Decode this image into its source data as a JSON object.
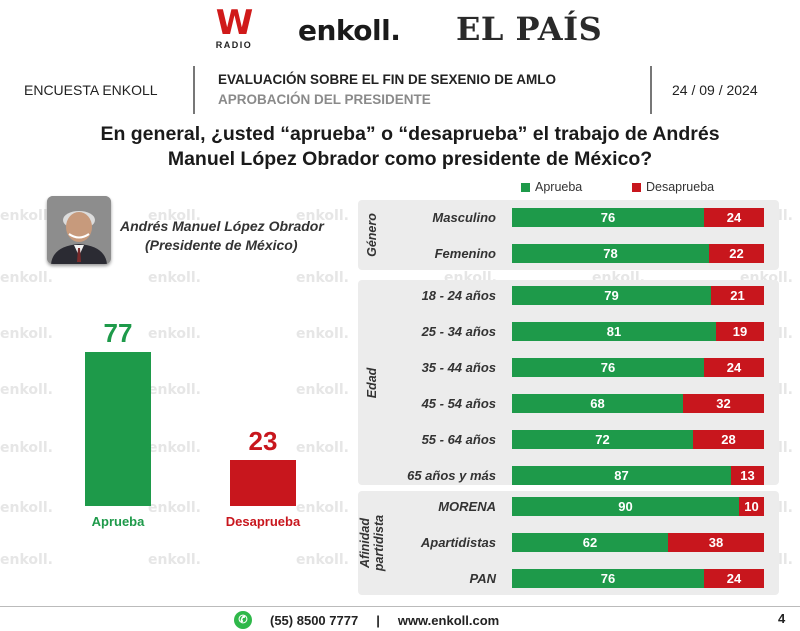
{
  "logos": {
    "w_letter": "W",
    "w_sub": "RADIO",
    "enkoll": "enkoll.",
    "elpais": "EL PAÍS"
  },
  "header": {
    "left": "ENCUESTA ENKOLL",
    "title": "EVALUACIÓN SOBRE EL FIN DE SEXENIO DE AMLO",
    "subtitle": "APROBACIÓN DEL PRESIDENTE",
    "date": "24 / 09 / 2024"
  },
  "question": "En general, ¿usted “aprueba” o “desaprueba” el trabajo de Andrés Manuel López Obrador como presidente de México?",
  "person": {
    "name": "Andrés Manuel López Obrador",
    "role": "(Presidente de México)"
  },
  "watermark": "enkoll.",
  "colors": {
    "aprueba": "#1e9a4a",
    "desaprueba": "#c8161d",
    "group_bg": "#ececec"
  },
  "chart_data": [
    {
      "type": "bar",
      "categories": [
        "Aprueba",
        "Desaprueba"
      ],
      "values": [
        77,
        23
      ],
      "ylim": [
        0,
        100
      ]
    },
    {
      "type": "bar",
      "stacked": true,
      "orientation": "horizontal",
      "legend": {
        "position": "top-right",
        "labels": [
          "Aprueba",
          "Desaprueba"
        ]
      },
      "groups": [
        {
          "label": "Género",
          "rows": [
            {
              "label": "Masculino",
              "aprueba": 76,
              "desaprueba": 24
            },
            {
              "label": "Femenino",
              "aprueba": 78,
              "desaprueba": 22
            }
          ]
        },
        {
          "label": "Edad",
          "rows": [
            {
              "label": "18 - 24 años",
              "aprueba": 79,
              "desaprueba": 21
            },
            {
              "label": "25 - 34 años",
              "aprueba": 81,
              "desaprueba": 19
            },
            {
              "label": "35 - 44 años",
              "aprueba": 76,
              "desaprueba": 24
            },
            {
              "label": "45 - 54 años",
              "aprueba": 68,
              "desaprueba": 32
            },
            {
              "label": "55 - 64 años",
              "aprueba": 72,
              "desaprueba": 28
            },
            {
              "label": "65 años y más",
              "aprueba": 87,
              "desaprueba": 13
            }
          ]
        },
        {
          "label": "Afinidad partidista",
          "rows": [
            {
              "label": "MORENA",
              "aprueba": 90,
              "desaprueba": 10
            },
            {
              "label": "Apartidistas",
              "aprueba": 62,
              "desaprueba": 38
            },
            {
              "label": "PAN",
              "aprueba": 76,
              "desaprueba": 24
            }
          ]
        }
      ]
    }
  ],
  "footer": {
    "phone": "(55) 8500 7777",
    "separator": "|",
    "web": "www.enkoll.com",
    "page": "4"
  }
}
